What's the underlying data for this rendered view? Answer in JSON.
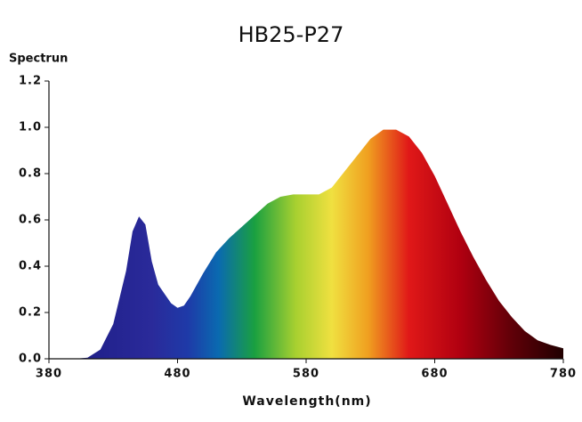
{
  "chart_data": {
    "type": "area",
    "title": "HB25-P27",
    "y_label": "Spectrun",
    "x_label": "Wavelength(nm)",
    "x": [
      380,
      390,
      400,
      410,
      420,
      430,
      440,
      445,
      450,
      455,
      460,
      465,
      470,
      475,
      480,
      485,
      490,
      500,
      510,
      520,
      530,
      540,
      550,
      560,
      570,
      580,
      590,
      600,
      610,
      620,
      630,
      640,
      650,
      660,
      670,
      680,
      690,
      700,
      710,
      720,
      730,
      740,
      750,
      760,
      770,
      780
    ],
    "values": [
      0,
      0,
      0,
      0.005,
      0.04,
      0.15,
      0.38,
      0.55,
      0.615,
      0.58,
      0.42,
      0.32,
      0.28,
      0.24,
      0.22,
      0.23,
      0.27,
      0.37,
      0.46,
      0.52,
      0.57,
      0.62,
      0.67,
      0.7,
      0.71,
      0.71,
      0.71,
      0.74,
      0.81,
      0.88,
      0.95,
      0.99,
      0.99,
      0.96,
      0.89,
      0.79,
      0.67,
      0.55,
      0.44,
      0.34,
      0.25,
      0.18,
      0.12,
      0.08,
      0.06,
      0.045
    ],
    "xlim": [
      380,
      780
    ],
    "xticks": [
      380,
      480,
      580,
      680,
      780
    ],
    "ylim": [
      0,
      1.2
    ],
    "yticks": [
      {
        "value": 0,
        "label": "0.0"
      },
      0.2,
      0.4,
      0.6,
      0.8,
      {
        "value": 1,
        "label": "1.0"
      },
      1.2
    ]
  }
}
